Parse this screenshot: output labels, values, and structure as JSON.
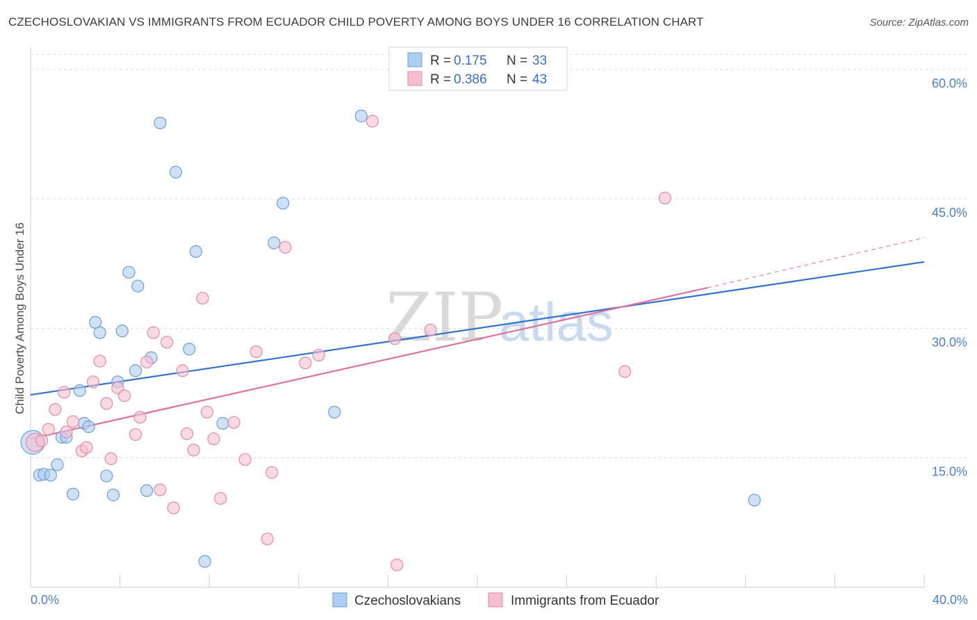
{
  "header": {
    "title": "CZECHOSLOVAKIAN VS IMMIGRANTS FROM ECUADOR CHILD POVERTY AMONG BOYS UNDER 16 CORRELATION CHART",
    "source": "Source: ZipAtlas.com"
  },
  "watermark": {
    "zip": "ZIP",
    "atlas": "atlas"
  },
  "legend_box": {
    "rows": [
      {
        "r_label": "R =",
        "r_value": "0.175",
        "n_label": "N =",
        "n_value": "33"
      },
      {
        "r_label": "R =",
        "r_value": "0.386",
        "n_label": "N =",
        "n_value": "43"
      }
    ]
  },
  "bottom_legend": [
    "Czechoslovakians",
    "Immigrants from Ecuador"
  ],
  "colors": {
    "blue_fill": "#aecdf2",
    "blue_stroke": "#6a9fd9",
    "blue_line": "#2f72d0",
    "pink_fill": "#f6bfd0",
    "pink_stroke": "#e38aa7",
    "pink_line": "#e0709a",
    "tick_label": "#4a7fd0",
    "grid": "#dcdcdc"
  },
  "chart_data": {
    "type": "scatter",
    "title": "CZECHOSLOVAKIAN VS IMMIGRANTS FROM ECUADOR CHILD POVERTY AMONG BOYS UNDER 16 CORRELATION CHART",
    "xlabel": "",
    "ylabel": "Child Poverty Among Boys Under 16",
    "xlim": [
      0,
      40
    ],
    "ylim": [
      0,
      62
    ],
    "x_tick_labels": [
      "0.0%",
      "40.0%"
    ],
    "y_ticks": [
      15,
      30,
      45,
      60
    ],
    "y_tick_labels": [
      "15.0%",
      "30.0%",
      "45.0%",
      "60.0%"
    ],
    "grid": true,
    "legend_position": "top-center",
    "series": [
      {
        "name": "Czechoslovakians",
        "color": "#aecdf2",
        "points": [
          [
            0.1,
            16.8
          ],
          [
            0.4,
            13.0
          ],
          [
            0.6,
            13.1
          ],
          [
            0.9,
            13.0
          ],
          [
            1.2,
            14.2
          ],
          [
            1.4,
            17.4
          ],
          [
            1.6,
            17.4
          ],
          [
            1.9,
            10.8
          ],
          [
            2.2,
            22.8
          ],
          [
            2.4,
            19.0
          ],
          [
            2.6,
            18.6
          ],
          [
            2.9,
            30.7
          ],
          [
            3.1,
            29.5
          ],
          [
            3.4,
            12.9
          ],
          [
            3.7,
            10.7
          ],
          [
            3.9,
            23.8
          ],
          [
            4.1,
            29.7
          ],
          [
            4.4,
            36.5
          ],
          [
            4.7,
            25.1
          ],
          [
            4.8,
            34.9
          ],
          [
            5.2,
            11.2
          ],
          [
            5.4,
            26.6
          ],
          [
            5.8,
            53.8
          ],
          [
            6.5,
            48.1
          ],
          [
            7.1,
            27.6
          ],
          [
            7.4,
            38.9
          ],
          [
            7.8,
            3.0
          ],
          [
            8.6,
            19.0
          ],
          [
            10.9,
            39.9
          ],
          [
            11.3,
            44.5
          ],
          [
            13.6,
            20.3
          ],
          [
            14.8,
            54.6
          ],
          [
            32.4,
            10.1
          ]
        ],
        "trend": {
          "x": [
            0,
            40
          ],
          "y": [
            22.3,
            37.7
          ]
        }
      },
      {
        "name": "Immigrants from Ecuador",
        "color": "#f6bfd0",
        "points": [
          [
            0.2,
            16.8
          ],
          [
            0.5,
            17.0
          ],
          [
            0.8,
            18.3
          ],
          [
            1.1,
            20.6
          ],
          [
            1.5,
            22.6
          ],
          [
            1.6,
            18.0
          ],
          [
            1.9,
            19.2
          ],
          [
            2.3,
            15.8
          ],
          [
            2.5,
            16.2
          ],
          [
            2.8,
            23.8
          ],
          [
            3.1,
            26.2
          ],
          [
            3.4,
            21.3
          ],
          [
            3.6,
            14.9
          ],
          [
            3.9,
            23.1
          ],
          [
            4.2,
            22.2
          ],
          [
            4.7,
            17.7
          ],
          [
            4.9,
            19.7
          ],
          [
            5.2,
            26.1
          ],
          [
            5.5,
            29.5
          ],
          [
            5.8,
            11.3
          ],
          [
            6.1,
            28.4
          ],
          [
            6.4,
            9.2
          ],
          [
            6.8,
            25.1
          ],
          [
            7.0,
            17.8
          ],
          [
            7.3,
            15.9
          ],
          [
            7.7,
            33.5
          ],
          [
            7.9,
            20.3
          ],
          [
            8.2,
            17.2
          ],
          [
            8.5,
            10.3
          ],
          [
            9.1,
            19.1
          ],
          [
            9.6,
            14.8
          ],
          [
            10.1,
            27.3
          ],
          [
            10.6,
            5.6
          ],
          [
            10.8,
            13.3
          ],
          [
            11.4,
            39.4
          ],
          [
            12.3,
            26.0
          ],
          [
            12.9,
            26.9
          ],
          [
            15.3,
            54.0
          ],
          [
            16.3,
            28.8
          ],
          [
            16.4,
            2.6
          ],
          [
            17.9,
            29.8
          ],
          [
            26.6,
            25.0
          ],
          [
            28.4,
            45.1
          ]
        ],
        "trend": {
          "x": [
            0,
            30.3
          ],
          "y": [
            17.2,
            34.7
          ]
        },
        "trend_extension": {
          "x": [
            30.3,
            40
          ],
          "y": [
            34.7,
            40.5
          ]
        }
      }
    ]
  }
}
